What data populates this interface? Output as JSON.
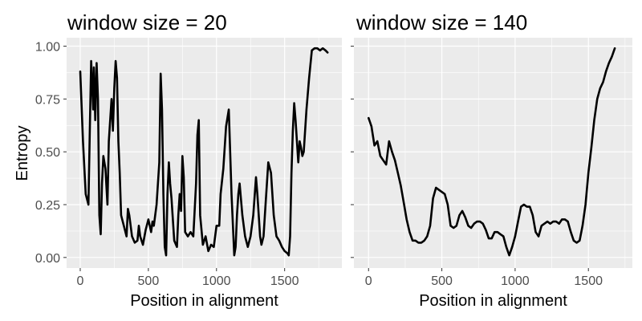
{
  "figure": {
    "ylabel": "Entropy"
  },
  "chart_data": [
    {
      "type": "line",
      "title": "window size = 20",
      "xlabel": "Position in alignment",
      "ylabel": "Entropy",
      "xlim": [
        -100,
        1920
      ],
      "ylim": [
        -0.05,
        1.04
      ],
      "xticks": [
        0,
        500,
        1000,
        1500
      ],
      "yticks": [
        0.0,
        0.25,
        0.5,
        0.75,
        1.0
      ],
      "ytick_labels": [
        "0.00",
        "0.25",
        "0.50",
        "0.75",
        "1.00"
      ],
      "grid": true,
      "line_color": "#000000",
      "panel_background": "#ebebeb",
      "x": [
        0,
        20,
        40,
        60,
        70,
        80,
        95,
        100,
        110,
        120,
        130,
        140,
        150,
        160,
        170,
        185,
        200,
        210,
        230,
        240,
        250,
        260,
        270,
        280,
        290,
        300,
        320,
        340,
        350,
        360,
        370,
        380,
        400,
        420,
        430,
        440,
        460,
        480,
        500,
        520,
        530,
        540,
        560,
        580,
        590,
        600,
        610,
        620,
        630,
        640,
        650,
        660,
        670,
        690,
        710,
        720,
        730,
        740,
        750,
        760,
        770,
        790,
        810,
        830,
        850,
        860,
        870,
        880,
        900,
        920,
        940,
        960,
        980,
        1000,
        1020,
        1030,
        1050,
        1070,
        1090,
        1110,
        1130,
        1140,
        1150,
        1160,
        1170,
        1190,
        1210,
        1230,
        1250,
        1270,
        1290,
        1300,
        1320,
        1330,
        1345,
        1360,
        1380,
        1400,
        1420,
        1440,
        1460,
        1480,
        1500,
        1520,
        1530,
        1540,
        1550,
        1560,
        1570,
        1580,
        1590,
        1600,
        1610,
        1620,
        1630,
        1640,
        1660,
        1680,
        1700,
        1720,
        1740,
        1760,
        1780,
        1800,
        1815
      ],
      "y": [
        0.88,
        0.55,
        0.3,
        0.25,
        0.6,
        0.93,
        0.7,
        0.9,
        0.65,
        0.92,
        0.75,
        0.2,
        0.11,
        0.35,
        0.48,
        0.42,
        0.25,
        0.55,
        0.75,
        0.6,
        0.8,
        0.93,
        0.85,
        0.55,
        0.4,
        0.2,
        0.15,
        0.1,
        0.23,
        0.2,
        0.15,
        0.1,
        0.07,
        0.08,
        0.15,
        0.1,
        0.06,
        0.13,
        0.18,
        0.12,
        0.17,
        0.15,
        0.25,
        0.45,
        0.87,
        0.7,
        0.3,
        0.05,
        0.01,
        0.3,
        0.45,
        0.35,
        0.28,
        0.08,
        0.05,
        0.2,
        0.3,
        0.22,
        0.48,
        0.38,
        0.12,
        0.1,
        0.12,
        0.1,
        0.35,
        0.58,
        0.65,
        0.2,
        0.06,
        0.1,
        0.03,
        0.06,
        0.05,
        0.15,
        0.15,
        0.3,
        0.42,
        0.62,
        0.7,
        0.3,
        0.01,
        0.05,
        0.2,
        0.3,
        0.35,
        0.2,
        0.1,
        0.05,
        0.1,
        0.2,
        0.38,
        0.3,
        0.1,
        0.06,
        0.1,
        0.25,
        0.45,
        0.4,
        0.2,
        0.1,
        0.08,
        0.05,
        0.03,
        0.02,
        0.01,
        0.1,
        0.4,
        0.6,
        0.73,
        0.65,
        0.55,
        0.45,
        0.55,
        0.52,
        0.48,
        0.5,
        0.7,
        0.85,
        0.98,
        0.99,
        0.99,
        0.98,
        0.99,
        0.98,
        0.97
      ]
    },
    {
      "type": "line",
      "title": "window size = 140",
      "xlabel": "Position in alignment",
      "ylabel": "Entropy",
      "xlim": [
        -100,
        1800
      ],
      "ylim": [
        -0.05,
        1.04
      ],
      "xticks": [
        0,
        500,
        1000,
        1500
      ],
      "yticks": [
        0.0,
        0.25,
        0.5,
        0.75,
        1.0
      ],
      "grid": true,
      "line_color": "#000000",
      "panel_background": "#ebebeb",
      "x": [
        0,
        20,
        40,
        60,
        80,
        100,
        120,
        140,
        160,
        180,
        200,
        220,
        240,
        260,
        280,
        300,
        320,
        340,
        360,
        380,
        400,
        420,
        440,
        460,
        480,
        500,
        520,
        540,
        560,
        580,
        600,
        620,
        640,
        660,
        680,
        700,
        720,
        740,
        760,
        780,
        800,
        820,
        840,
        860,
        880,
        900,
        920,
        940,
        960,
        980,
        1000,
        1020,
        1040,
        1060,
        1080,
        1100,
        1120,
        1140,
        1160,
        1180,
        1200,
        1220,
        1240,
        1260,
        1280,
        1300,
        1320,
        1340,
        1360,
        1380,
        1400,
        1420,
        1440,
        1460,
        1480,
        1500,
        1520,
        1540,
        1560,
        1580,
        1600,
        1620,
        1640,
        1660,
        1680
      ],
      "y": [
        0.66,
        0.62,
        0.53,
        0.55,
        0.48,
        0.46,
        0.44,
        0.55,
        0.5,
        0.46,
        0.4,
        0.34,
        0.26,
        0.18,
        0.12,
        0.08,
        0.08,
        0.07,
        0.07,
        0.08,
        0.1,
        0.15,
        0.28,
        0.33,
        0.32,
        0.31,
        0.3,
        0.25,
        0.15,
        0.14,
        0.15,
        0.2,
        0.22,
        0.19,
        0.15,
        0.14,
        0.16,
        0.17,
        0.17,
        0.16,
        0.13,
        0.09,
        0.09,
        0.12,
        0.12,
        0.11,
        0.1,
        0.05,
        0.01,
        0.05,
        0.1,
        0.17,
        0.24,
        0.25,
        0.24,
        0.24,
        0.2,
        0.12,
        0.1,
        0.15,
        0.16,
        0.17,
        0.16,
        0.17,
        0.17,
        0.16,
        0.18,
        0.18,
        0.17,
        0.12,
        0.08,
        0.07,
        0.08,
        0.15,
        0.25,
        0.4,
        0.52,
        0.65,
        0.75,
        0.8,
        0.83,
        0.88,
        0.92,
        0.95,
        0.99
      ]
    }
  ]
}
